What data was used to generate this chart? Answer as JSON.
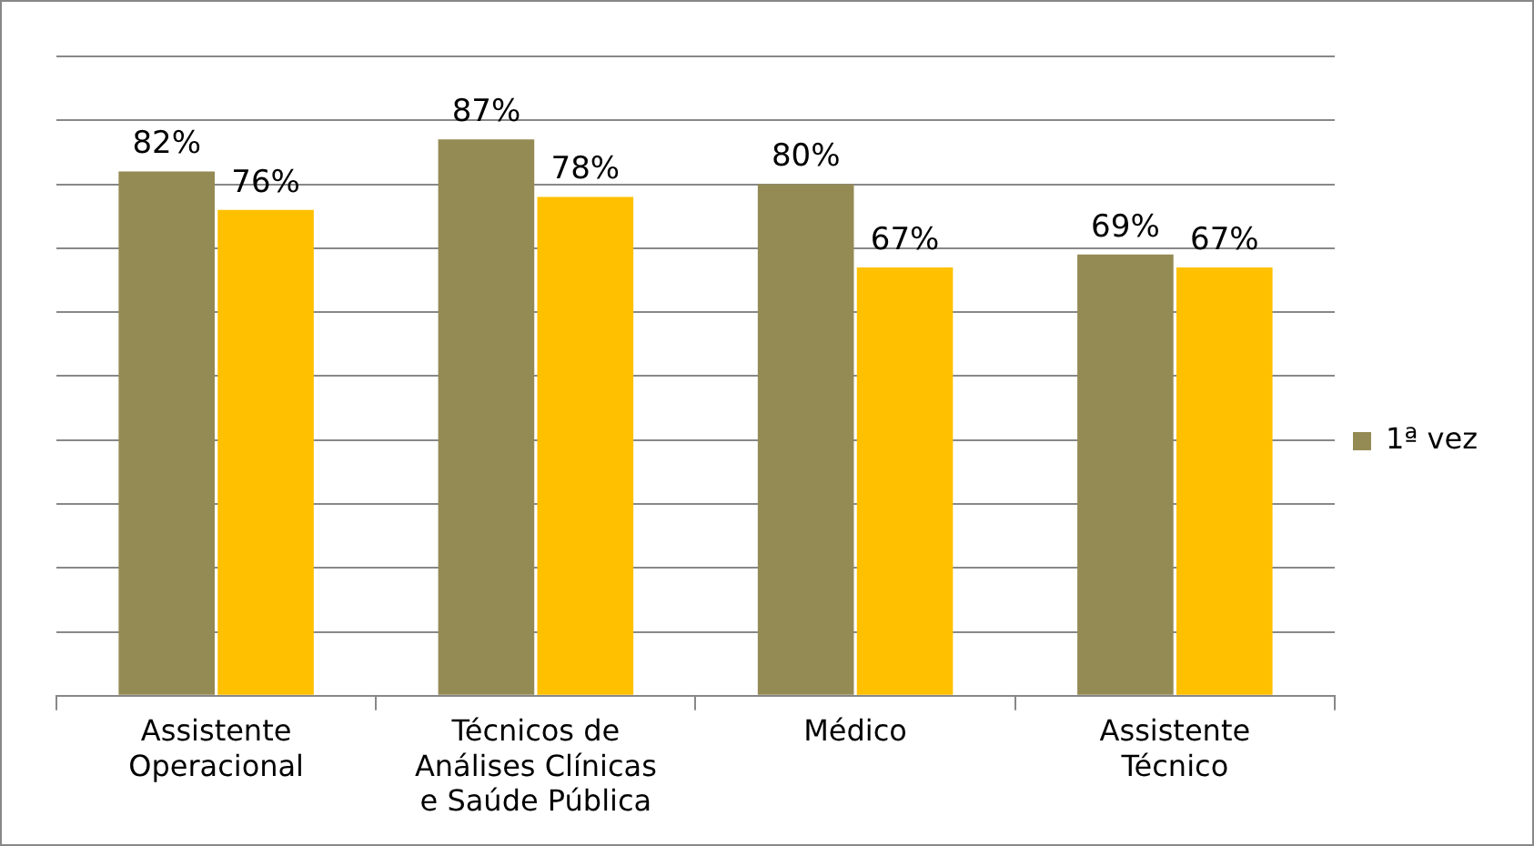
{
  "chart_data": {
    "type": "bar",
    "categories": [
      "Assistente Operacional",
      "Técnicos de Análises Clínicas e Saúde Pública",
      "Médico",
      "Assistente Técnico"
    ],
    "series": [
      {
        "name": "1ª vez",
        "color": "#948a54",
        "values": [
          82,
          87,
          80,
          69
        ],
        "value_labels": [
          "82%",
          "87%",
          "80%",
          "69%"
        ]
      },
      {
        "color": "#ffc000",
        "values": [
          76,
          78,
          67,
          67
        ],
        "value_labels": [
          "76%",
          "78%",
          "67%",
          "67%"
        ]
      }
    ],
    "ylim": [
      0,
      100
    ],
    "yticks": [
      {
        "value": 0,
        "label": null
      },
      {
        "value": 10,
        "label": null
      },
      {
        "value": 20,
        "label": null
      },
      {
        "value": 30,
        "label": null
      },
      {
        "value": 40,
        "label": null
      },
      {
        "value": 50,
        "label": null
      },
      {
        "value": 60,
        "label": null
      },
      {
        "value": 70,
        "label": null
      },
      {
        "value": 80,
        "label": null
      },
      {
        "value": 90,
        "label": null
      },
      {
        "value": 100,
        "label": null
      }
    ],
    "tick_labels": "x",
    "grid": "y",
    "legend": "right"
  }
}
